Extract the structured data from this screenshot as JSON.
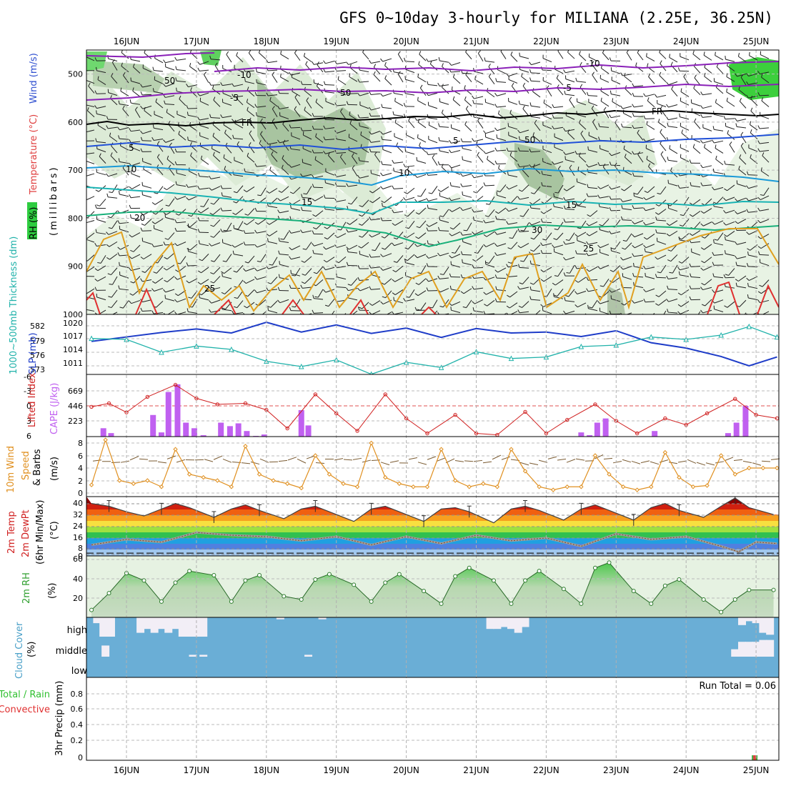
{
  "title": "GFS 0~10day 3-hourly for MILIANA (2.25E, 36.25N)",
  "dates": [
    "16JUN",
    "17JUN",
    "18JUN",
    "19JUN",
    "20JUN",
    "21JUN",
    "22JUN",
    "23JUN",
    "24JUN",
    "25JUN"
  ],
  "colors": {
    "rh_green": "#2ecc40",
    "thick": "#20b2aa",
    "slp": "#1e3cc8",
    "li": "#d02020",
    "cape": "#c060f0",
    "wind": "#e09020",
    "cloud": "#6aaed6",
    "temp_line": "#404040"
  },
  "panels": {
    "upper": {
      "ylabel_wind": "Wind (m/s)",
      "ylabel_temp": "Temperature (°C)",
      "ylabel_rh": "RH (%)",
      "ylabel_mb": "(millibars)",
      "yticks": [
        500,
        600,
        700,
        800,
        900,
        1000
      ],
      "isotherm_labels": [
        "-10",
        "-5",
        "FR",
        "5",
        "10",
        "15",
        "20",
        "25",
        "-10",
        "-5",
        "FR",
        "5",
        "10",
        "15",
        "25"
      ],
      "rh_labels": [
        "50",
        "50",
        "50",
        "30"
      ]
    },
    "thick": {
      "ylabel_thick": "1000~500mb Thickness (dm)",
      "ylabel_slp": "SLP (mb)",
      "left_ticks": [
        "582",
        "579",
        "576",
        "573"
      ],
      "right_ticks": [
        "1020",
        "1017",
        "1014",
        "1011"
      ]
    },
    "cape": {
      "ylabel_li": "Lifted Index",
      "ylabel_cape": "CAPE (J/kg)",
      "li_ticks": [
        "-6",
        "-3",
        "0",
        "3",
        "6"
      ],
      "cape_ticks": [
        "669",
        "446",
        "223"
      ]
    },
    "wind10": {
      "ylabel_1": "10m Wind",
      "ylabel_2": "Speed",
      "ylabel_3": "& Barbs",
      "ylabel_4": "(m/s)",
      "yticks": [
        "8",
        "6",
        "4",
        "2",
        "0"
      ]
    },
    "temp2m": {
      "ylabel_1": "2m Temp",
      "ylabel_2": "2m DewPt",
      "ylabel_3": "(6hr Min/Max)",
      "ylabel_4": "(°C)",
      "yticks": [
        "40",
        "32",
        "24",
        "16",
        "8",
        "0"
      ]
    },
    "rh2m": {
      "ylabel_1": "2m RH",
      "ylabel_2": "(%)",
      "yticks": [
        "60",
        "40",
        "20"
      ]
    },
    "cloud": {
      "ylabel_1": "Cloud Cover",
      "ylabel_2": "(%)",
      "levels": [
        "high",
        "middle",
        "low"
      ]
    },
    "precip": {
      "ylabel_1": "Total / Rain",
      "ylabel_2": "Convective",
      "ylabel_3": "3hr Precip (mm)",
      "yticks": [
        "0.8",
        "0.6",
        "0.4",
        "0.2",
        "0"
      ],
      "run_total": "Run Total = 0.06"
    }
  },
  "chart_data": [
    {
      "type": "line",
      "title": "1000~500mb Thickness (dm) / SLP (mb)",
      "x_unit": "day of June (UTC)",
      "series": [
        {
          "name": "SLP (mb)",
          "x": [
            15.5,
            16.0,
            16.5,
            17.0,
            17.5,
            18.0,
            18.5,
            19.0,
            19.5,
            20.0,
            20.5,
            21.0,
            21.5,
            22.0,
            22.5,
            23.0,
            23.5,
            24.0,
            24.5,
            24.9,
            25.3
          ],
          "values": [
            1016.5,
            1017.5,
            1018.5,
            1019.3,
            1018.4,
            1020.8,
            1018.6,
            1020.2,
            1018.3,
            1019.5,
            1017.4,
            1019.4,
            1018.4,
            1018.6,
            1017.6,
            1018.9,
            1016.2,
            1015.0,
            1013.1,
            1011.0,
            1013.0
          ]
        },
        {
          "name": "1000~500mb Thickness (dm)",
          "x": [
            15.5,
            16.0,
            16.5,
            17.0,
            17.5,
            18.0,
            18.5,
            19.0,
            19.5,
            20.0,
            20.5,
            21.0,
            21.5,
            22.0,
            22.5,
            23.0,
            23.5,
            24.0,
            24.5,
            24.9,
            25.3
          ],
          "values": [
            580.1,
            579.9,
            577.2,
            578.5,
            577.8,
            575.3,
            574.2,
            575.6,
            572.6,
            575.1,
            574.0,
            577.3,
            575.9,
            576.2,
            578.4,
            578.7,
            580.4,
            579.9,
            580.8,
            582.6,
            580.4
          ]
        }
      ],
      "ylim_left": [
        572,
        583
      ],
      "ylim_right": [
        1008,
        1022
      ]
    },
    {
      "type": "bar",
      "title": "Lifted Index / CAPE (J/kg)",
      "cape_x": [
        15.67,
        15.78,
        16.38,
        16.5,
        16.6,
        16.73,
        16.85,
        16.97,
        17.1,
        17.35,
        17.48,
        17.6,
        17.72,
        17.85,
        17.97,
        18.5,
        18.6,
        22.5,
        22.62,
        22.73,
        22.85,
        23.55,
        24.6,
        24.72,
        24.85
      ],
      "cape_values": [
        120,
        50,
        310,
        60,
        640,
        750,
        200,
        120,
        20,
        200,
        150,
        190,
        80,
        10,
        30,
        380,
        160,
        60,
        20,
        200,
        260,
        80,
        50,
        200,
        440
      ],
      "li_x": [
        15.5,
        15.75,
        16.0,
        16.3,
        16.7,
        17.0,
        17.3,
        17.7,
        18.0,
        18.3,
        18.7,
        19.0,
        19.3,
        19.7,
        20.0,
        20.3,
        20.7,
        21.0,
        21.3,
        21.7,
        22.0,
        22.3,
        22.7,
        23.0,
        23.3,
        23.7,
        24.0,
        24.3,
        24.7,
        25.0,
        25.3
      ],
      "li_values": [
        0.2,
        -0.5,
        1.3,
        -1.8,
        -4.2,
        -1.5,
        -0.3,
        -0.5,
        0.8,
        4.5,
        -2.3,
        1.5,
        5.0,
        -2.3,
        2.5,
        5.5,
        1.8,
        5.5,
        5.8,
        1.2,
        5.5,
        2.8,
        -0.3,
        3.0,
        5.5,
        2.5,
        3.8,
        1.5,
        -1.4,
        1.8,
        2.5
      ],
      "ylim_li": [
        6,
        -6
      ],
      "ylim_cape": [
        0,
        892
      ]
    },
    {
      "type": "line",
      "title": "10m Wind Speed & Barbs (m/s)",
      "x": [
        15.5,
        15.7,
        15.9,
        16.1,
        16.3,
        16.5,
        16.7,
        16.9,
        17.1,
        17.3,
        17.5,
        17.7,
        17.9,
        18.1,
        18.3,
        18.5,
        18.7,
        18.9,
        19.1,
        19.3,
        19.5,
        19.7,
        19.9,
        20.1,
        20.3,
        20.5,
        20.7,
        20.9,
        21.1,
        21.3,
        21.5,
        21.7,
        21.9,
        22.1,
        22.3,
        22.5,
        22.7,
        22.9,
        23.1,
        23.3,
        23.5,
        23.7,
        23.9,
        24.1,
        24.3,
        24.5,
        24.7,
        24.9,
        25.1,
        25.3
      ],
      "values": [
        1.3,
        8.5,
        2.0,
        1.5,
        2.0,
        1.0,
        7.0,
        3.0,
        2.5,
        2.0,
        1.0,
        7.5,
        3.0,
        2.0,
        1.5,
        0.8,
        6.0,
        3.0,
        1.5,
        1.0,
        8.0,
        2.5,
        1.5,
        1.0,
        1.0,
        7.0,
        2.0,
        1.0,
        1.5,
        1.0,
        7.0,
        3.5,
        1.0,
        0.5,
        1.0,
        1.0,
        6.0,
        3.0,
        1.0,
        0.5,
        1.0,
        6.5,
        2.5,
        1.0,
        1.2,
        6.0,
        3.0,
        4.0,
        4.0,
        4.0
      ],
      "ylim": [
        0,
        9
      ]
    },
    {
      "type": "area",
      "title": "2m Temp / 2m DewPt (°C)",
      "temp_x": [
        15.5,
        15.75,
        16.0,
        16.25,
        16.5,
        16.7,
        16.9,
        17.25,
        17.5,
        17.7,
        17.9,
        18.25,
        18.5,
        18.7,
        18.9,
        19.25,
        19.5,
        19.7,
        19.9,
        20.25,
        20.5,
        20.7,
        20.9,
        21.25,
        21.5,
        21.7,
        21.9,
        22.25,
        22.5,
        22.7,
        22.9,
        23.25,
        23.5,
        23.7,
        23.9,
        24.25,
        24.5,
        24.7,
        24.9,
        25.25
      ],
      "temp_values": [
        36,
        34,
        30,
        27,
        32,
        36,
        33,
        26,
        32,
        35,
        31,
        25,
        32,
        34,
        30,
        23,
        32,
        34,
        30,
        23,
        32,
        33,
        30,
        22,
        32,
        34,
        31,
        24,
        32,
        35,
        31,
        24,
        33,
        36,
        31,
        26,
        34,
        40,
        33,
        28
      ],
      "dew_x": [
        15.5,
        16.0,
        16.5,
        17.0,
        17.5,
        18.0,
        18.5,
        19.0,
        19.5,
        20.0,
        20.5,
        21.0,
        21.5,
        22.0,
        22.5,
        23.0,
        23.5,
        24.0,
        24.5,
        24.75,
        25.0,
        25.3
      ],
      "dew_values": [
        6,
        10,
        8,
        15,
        13,
        12,
        9,
        12,
        6,
        12,
        7,
        13,
        9,
        11,
        5,
        14,
        10,
        12,
        5,
        1,
        8,
        7
      ],
      "ylim": [
        -2,
        41
      ]
    },
    {
      "type": "area",
      "title": "2m RH (%)",
      "x": [
        15.5,
        15.75,
        16.0,
        16.25,
        16.5,
        16.7,
        16.9,
        17.25,
        17.5,
        17.7,
        17.9,
        18.25,
        18.5,
        18.7,
        18.9,
        19.25,
        19.5,
        19.7,
        19.9,
        20.25,
        20.5,
        20.7,
        20.9,
        21.25,
        21.5,
        21.7,
        21.9,
        22.25,
        22.5,
        22.7,
        22.9,
        23.25,
        23.5,
        23.7,
        23.9,
        24.25,
        24.5,
        24.7,
        24.9,
        25.25
      ],
      "values": [
        12,
        28,
        47,
        40,
        20,
        38,
        49,
        45,
        20,
        40,
        45,
        25,
        22,
        41,
        46,
        36,
        20,
        38,
        46,
        30,
        18,
        44,
        52,
        40,
        18,
        40,
        49,
        32,
        18,
        52,
        57,
        30,
        18,
        35,
        41,
        22,
        10,
        22,
        31,
        31
      ],
      "ylim": [
        5,
        62
      ]
    },
    {
      "type": "heatmap",
      "title": "Cloud Cover (%)",
      "rows": [
        "high",
        "middle",
        "low"
      ],
      "high_x": [
        15.58,
        15.67,
        15.78,
        16.2,
        16.3,
        16.4,
        16.5,
        16.6,
        16.7,
        16.8,
        16.9,
        17.0,
        17.1,
        18.2,
        18.8,
        21.2,
        21.3,
        21.4,
        21.5,
        21.6,
        21.7,
        24.8,
        24.9,
        25.0,
        25.1,
        25.2
      ],
      "high_values": [
        30,
        100,
        100,
        80,
        60,
        80,
        60,
        80,
        60,
        100,
        100,
        100,
        100,
        10,
        10,
        60,
        60,
        50,
        60,
        80,
        50,
        40,
        20,
        30,
        80,
        90
      ],
      "middle_x": [
        15.7,
        16.95,
        17.1,
        18.6,
        24.7,
        24.8,
        24.9,
        25.0,
        25.1,
        25.2
      ],
      "middle_values": [
        60,
        10,
        10,
        10,
        40,
        80,
        80,
        80,
        90,
        90
      ],
      "low_values": []
    },
    {
      "type": "bar",
      "title": "3hr Precip (mm)",
      "x": [
        24.98
      ],
      "values": [
        0.06
      ],
      "ylim": [
        0,
        1
      ]
    }
  ]
}
